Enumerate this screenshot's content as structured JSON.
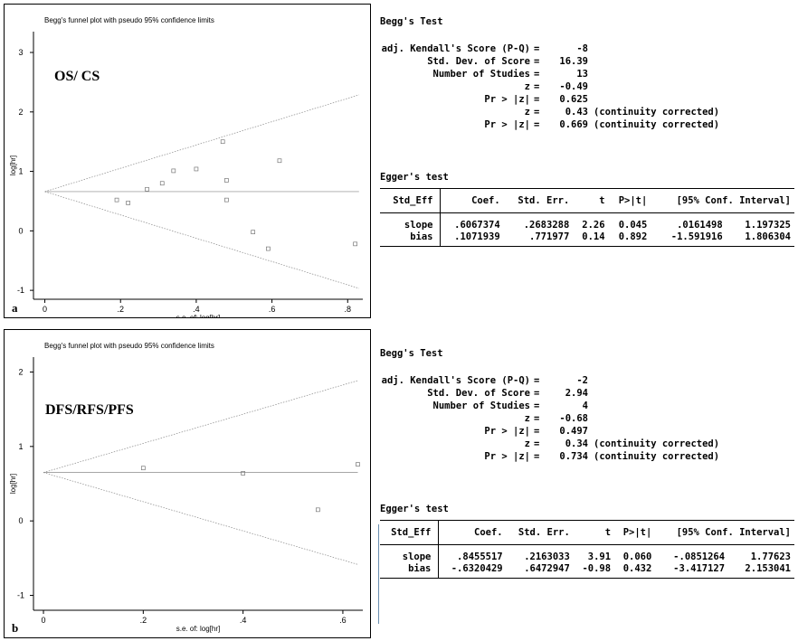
{
  "chart_data": [
    {
      "type": "scatter",
      "panel_letter": "a",
      "title": "Begg's funnel plot with pseudo 95% confidence limits",
      "group_label": "OS/ CS",
      "xlabel": "s.e. of: log[hr]",
      "ylabel": "log[hr]",
      "x_ticks": [
        "0",
        ".2",
        ".4",
        ".6",
        ".8"
      ],
      "y_ticks": [
        "-1",
        "0",
        "1",
        "2",
        "3"
      ],
      "xlim": [
        -0.03,
        0.84
      ],
      "ylim": [
        -1.15,
        3.35
      ],
      "pooled": 0.66,
      "points": [
        {
          "x": 0.19,
          "y": 0.52
        },
        {
          "x": 0.22,
          "y": 0.47
        },
        {
          "x": 0.27,
          "y": 0.7
        },
        {
          "x": 0.31,
          "y": 0.8
        },
        {
          "x": 0.34,
          "y": 1.01
        },
        {
          "x": 0.4,
          "y": 1.04
        },
        {
          "x": 0.47,
          "y": 1.5
        },
        {
          "x": 0.48,
          "y": 0.85
        },
        {
          "x": 0.48,
          "y": 0.52
        },
        {
          "x": 0.55,
          "y": -0.02
        },
        {
          "x": 0.59,
          "y": -0.3
        },
        {
          "x": 0.62,
          "y": 1.18
        },
        {
          "x": 0.82,
          "y": -0.22
        }
      ],
      "stats": {
        "begg_title": "Begg's Test",
        "rows": [
          {
            "label": "adj. Kendall's Score (P-Q)",
            "value": "-8",
            "note": ""
          },
          {
            "label": "Std. Dev. of Score",
            "value": "16.39",
            "note": ""
          },
          {
            "label": "Number of Studies",
            "value": "13",
            "note": ""
          },
          {
            "label": "z",
            "value": "-0.49",
            "note": ""
          },
          {
            "label": "Pr > |z|",
            "value": "0.625",
            "note": ""
          },
          {
            "label": "z",
            "value": "0.43",
            "note": "(continuity corrected)"
          },
          {
            "label": "Pr > |z|",
            "value": "0.669",
            "note": "(continuity corrected)"
          }
        ],
        "egger_title": "Egger's test",
        "egger_header": [
          "Std_Eff",
          "Coef.",
          "Std. Err.",
          "t",
          "P>|t|",
          "[95% Conf. Interval]"
        ],
        "egger_rows": [
          [
            "slope",
            ".6067374",
            ".2683288",
            "2.26",
            "0.045",
            ".0161498",
            "1.197325"
          ],
          [
            "bias",
            ".1071939",
            ".771977",
            "0.14",
            "0.892",
            "-1.591916",
            "1.806304"
          ]
        ]
      }
    },
    {
      "type": "scatter",
      "panel_letter": "b",
      "title": "Begg's funnel plot with pseudo 95% confidence limits",
      "group_label": "DFS/RFS/PFS",
      "xlabel": "s.e. of: log[hr]",
      "ylabel": "log[hr]",
      "x_ticks": [
        "0",
        ".2",
        ".4",
        ".6"
      ],
      "y_ticks": [
        "-1",
        "0",
        "1",
        "2"
      ],
      "xlim": [
        -0.02,
        0.64
      ],
      "ylim": [
        -1.2,
        2.2
      ],
      "pooled": 0.65,
      "points": [
        {
          "x": 0.2,
          "y": 0.71
        },
        {
          "x": 0.4,
          "y": 0.64
        },
        {
          "x": 0.55,
          "y": 0.15
        },
        {
          "x": 0.63,
          "y": 0.76
        }
      ],
      "stats": {
        "begg_title": "Begg's Test",
        "rows": [
          {
            "label": "adj. Kendall's Score (P-Q)",
            "value": "-2",
            "note": ""
          },
          {
            "label": "Std. Dev. of Score",
            "value": "2.94",
            "note": ""
          },
          {
            "label": "Number of Studies",
            "value": "4",
            "note": ""
          },
          {
            "label": "z",
            "value": "-0.68",
            "note": ""
          },
          {
            "label": "Pr > |z|",
            "value": "0.497",
            "note": ""
          },
          {
            "label": "z",
            "value": "0.34",
            "note": "(continuity corrected)"
          },
          {
            "label": "Pr > |z|",
            "value": "0.734",
            "note": "(continuity corrected)"
          }
        ],
        "egger_title": "Egger's test",
        "egger_header": [
          "Std_Eff",
          "Coef.",
          "Std. Err.",
          "t",
          "P>|t|",
          "[95% Conf. Interval]"
        ],
        "egger_rows": [
          [
            "slope",
            ".8455517",
            ".2163033",
            "3.91",
            "0.060",
            "-.0851264",
            "1.77623"
          ],
          [
            "bias",
            "-.6320429",
            ".6472947",
            "-0.98",
            "0.432",
            "-3.417127",
            "2.153041"
          ]
        ]
      }
    }
  ]
}
